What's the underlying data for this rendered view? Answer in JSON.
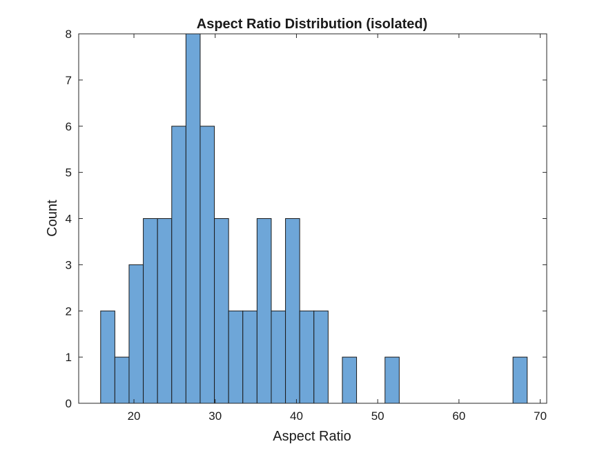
{
  "chart_data": {
    "type": "bar",
    "title": "Aspect Ratio Distribution (isolated)",
    "xlabel": "Aspect Ratio",
    "ylabel": "Count",
    "xlim": [
      13.2,
      70.8
    ],
    "ylim": [
      0,
      8
    ],
    "xticks": [
      20,
      30,
      40,
      50,
      60,
      70
    ],
    "yticks": [
      0,
      1,
      2,
      3,
      4,
      5,
      6,
      7,
      8
    ],
    "bin_width": 1.75,
    "bins": [
      {
        "start": 15.9,
        "end": 17.65,
        "count": 2
      },
      {
        "start": 17.65,
        "end": 19.4,
        "count": 1
      },
      {
        "start": 19.4,
        "end": 21.15,
        "count": 3
      },
      {
        "start": 21.15,
        "end": 22.9,
        "count": 4
      },
      {
        "start": 22.9,
        "end": 24.65,
        "count": 4
      },
      {
        "start": 24.65,
        "end": 26.4,
        "count": 6
      },
      {
        "start": 26.4,
        "end": 28.15,
        "count": 8
      },
      {
        "start": 28.15,
        "end": 29.9,
        "count": 6
      },
      {
        "start": 29.9,
        "end": 31.65,
        "count": 4
      },
      {
        "start": 31.65,
        "end": 33.4,
        "count": 2
      },
      {
        "start": 33.4,
        "end": 35.15,
        "count": 2
      },
      {
        "start": 35.15,
        "end": 36.9,
        "count": 4
      },
      {
        "start": 36.9,
        "end": 38.65,
        "count": 2
      },
      {
        "start": 38.65,
        "end": 40.4,
        "count": 4
      },
      {
        "start": 40.4,
        "end": 42.15,
        "count": 2
      },
      {
        "start": 42.15,
        "end": 43.9,
        "count": 2
      },
      {
        "start": 45.65,
        "end": 47.4,
        "count": 1
      },
      {
        "start": 50.9,
        "end": 52.65,
        "count": 1
      },
      {
        "start": 66.65,
        "end": 68.4,
        "count": 1
      }
    ],
    "grid": false,
    "bar_color": "#6ea6d8",
    "edge_color": "#1a1a1a"
  }
}
